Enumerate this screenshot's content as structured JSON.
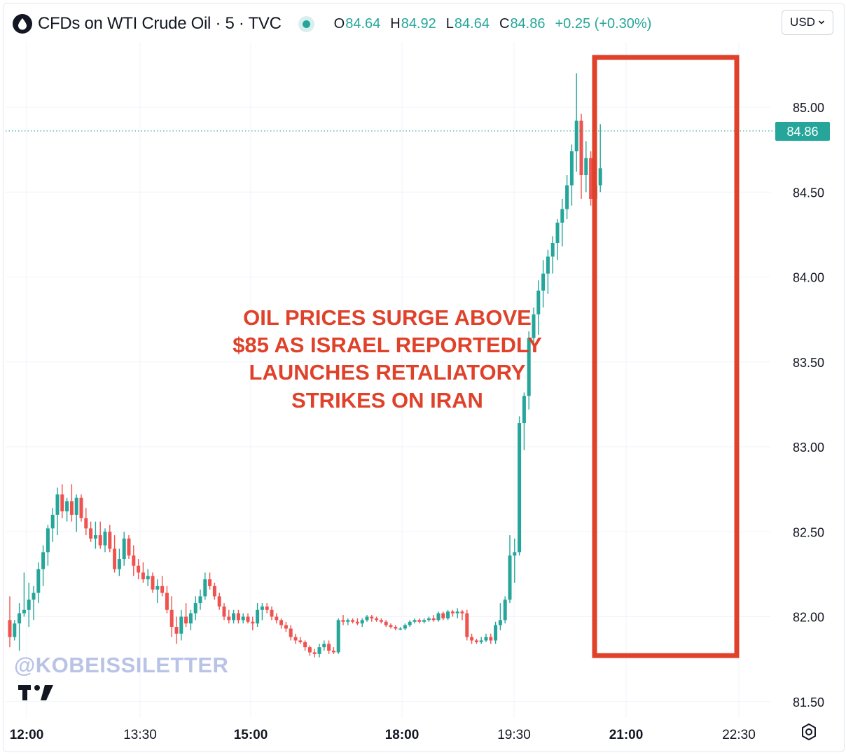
{
  "header": {
    "title": "CFDs on WTI Crude Oil · 5 · TVC",
    "ohlc": [
      {
        "key": "O",
        "value": "84.64"
      },
      {
        "key": "H",
        "value": "84.92"
      },
      {
        "key": "L",
        "value": "84.64"
      },
      {
        "key": "C",
        "value": "84.86"
      },
      {
        "key": "",
        "value": "+0.25 (+0.30%)"
      }
    ],
    "currency": "USD",
    "logo_icon": "oil-drop-icon",
    "status_icon": "market-open-dot-icon"
  },
  "watermark": "@KOBEISSILETTER",
  "annotation": {
    "lines": [
      "OIL PRICES SURGE ABOVE",
      "$85 AS ISRAEL REPORTEDLY",
      "LAUNCHES RETALIATORY",
      "STRIKES ON IRAN"
    ],
    "color": "#e0412a"
  },
  "colors": {
    "up": "#26a69a",
    "down": "#ef5350",
    "highlight": "#e0412a",
    "grid": "#f0f3fa",
    "axis_text": "#131722"
  },
  "chart_data": {
    "type": "candlestick",
    "title": "CFDs on WTI Crude Oil · 5 · TVC",
    "interval": "5",
    "y_axis": {
      "ticks": [
        "85.00",
        "84.50",
        "84.00",
        "83.50",
        "83.00",
        "82.50",
        "82.00",
        "81.50"
      ],
      "range": [
        81.43,
        85.66
      ],
      "position": "right",
      "last_price_label": "84.86",
      "last_price": 84.86
    },
    "x_axis": {
      "ticks": [
        {
          "label": "12:00",
          "bold": true
        },
        {
          "label": "13:30",
          "bold": false
        },
        {
          "label": "15:00",
          "bold": true
        },
        {
          "label": "18:00",
          "bold": true
        },
        {
          "label": "19:30",
          "bold": false
        },
        {
          "label": "21:00",
          "bold": true
        },
        {
          "label": "22:30",
          "bold": false
        }
      ]
    },
    "grid": true,
    "candles": [
      [
        81.98,
        82.12,
        81.82,
        81.88
      ],
      [
        81.88,
        81.98,
        81.86,
        81.96
      ],
      [
        81.96,
        82.08,
        81.8,
        82.02
      ],
      [
        82.02,
        82.26,
        82.0,
        82.04
      ],
      [
        82.04,
        82.2,
        81.94,
        82.1
      ],
      [
        82.1,
        82.18,
        81.98,
        82.14
      ],
      [
        82.14,
        82.32,
        82.08,
        82.28
      ],
      [
        82.28,
        82.42,
        82.18,
        82.38
      ],
      [
        82.38,
        82.54,
        82.3,
        82.52
      ],
      [
        82.52,
        82.64,
        82.44,
        82.6
      ],
      [
        82.6,
        82.76,
        82.48,
        82.72
      ],
      [
        82.72,
        82.78,
        82.58,
        82.62
      ],
      [
        82.62,
        82.7,
        82.56,
        82.68
      ],
      [
        82.68,
        82.78,
        82.56,
        82.6
      ],
      [
        82.6,
        82.72,
        82.5,
        82.7
      ],
      [
        82.7,
        82.72,
        82.56,
        82.58
      ],
      [
        82.58,
        82.64,
        82.48,
        82.52
      ],
      [
        82.52,
        82.56,
        82.44,
        82.46
      ],
      [
        82.46,
        82.56,
        82.4,
        82.48
      ],
      [
        82.48,
        82.56,
        82.4,
        82.42
      ],
      [
        82.42,
        82.52,
        82.38,
        82.5
      ],
      [
        82.5,
        82.54,
        82.38,
        82.4
      ],
      [
        82.4,
        82.48,
        82.26,
        82.28
      ],
      [
        82.28,
        82.4,
        82.24,
        82.34
      ],
      [
        82.34,
        82.5,
        82.3,
        82.46
      ],
      [
        82.46,
        82.48,
        82.34,
        82.36
      ],
      [
        82.36,
        82.42,
        82.24,
        82.3
      ],
      [
        82.3,
        82.34,
        82.22,
        82.26
      ],
      [
        82.26,
        82.32,
        82.2,
        82.22
      ],
      [
        82.22,
        82.28,
        82.18,
        82.24
      ],
      [
        82.24,
        82.26,
        82.14,
        82.16
      ],
      [
        82.16,
        82.22,
        82.08,
        82.18
      ],
      [
        82.18,
        82.24,
        82.12,
        82.14
      ],
      [
        82.14,
        82.18,
        82.02,
        82.04
      ],
      [
        82.04,
        82.12,
        81.88,
        81.94
      ],
      [
        81.94,
        82.0,
        81.84,
        81.9
      ],
      [
        81.9,
        82.04,
        81.86,
        82.0
      ],
      [
        82.0,
        82.08,
        81.94,
        81.96
      ],
      [
        81.96,
        82.04,
        81.92,
        82.02
      ],
      [
        82.02,
        82.12,
        81.98,
        82.08
      ],
      [
        82.08,
        82.16,
        82.04,
        82.12
      ],
      [
        82.12,
        82.26,
        82.1,
        82.22
      ],
      [
        82.22,
        82.26,
        82.16,
        82.18
      ],
      [
        82.18,
        82.2,
        82.1,
        82.12
      ],
      [
        82.12,
        82.14,
        82.04,
        82.06
      ],
      [
        82.06,
        82.08,
        81.98,
        82.0
      ],
      [
        82.0,
        82.04,
        81.96,
        81.98
      ],
      [
        81.98,
        82.04,
        81.96,
        82.02
      ],
      [
        82.02,
        82.04,
        81.96,
        81.98
      ],
      [
        81.98,
        82.02,
        81.96,
        82.0
      ],
      [
        82.0,
        82.02,
        81.96,
        81.97
      ],
      [
        81.97,
        82.0,
        81.92,
        81.96
      ],
      [
        81.96,
        82.08,
        81.94,
        82.04
      ],
      [
        82.04,
        82.08,
        81.98,
        82.06
      ],
      [
        82.06,
        82.08,
        82.02,
        82.04
      ],
      [
        82.04,
        82.06,
        81.98,
        82.0
      ],
      [
        82.0,
        82.02,
        81.96,
        81.98
      ],
      [
        81.98,
        81.99,
        81.93,
        81.95
      ],
      [
        81.95,
        81.97,
        81.91,
        81.93
      ],
      [
        81.93,
        81.95,
        81.86,
        81.88
      ],
      [
        81.88,
        81.9,
        81.84,
        81.86
      ],
      [
        81.86,
        81.88,
        81.84,
        81.85
      ],
      [
        81.85,
        81.86,
        81.8,
        81.82
      ],
      [
        81.82,
        81.83,
        81.77,
        81.79
      ],
      [
        81.79,
        81.81,
        81.76,
        81.78
      ],
      [
        81.78,
        81.84,
        81.76,
        81.82
      ],
      [
        81.82,
        81.86,
        81.8,
        81.84
      ],
      [
        81.84,
        81.86,
        81.78,
        81.8
      ],
      [
        81.8,
        81.82,
        81.78,
        81.79
      ],
      [
        81.79,
        81.99,
        81.78,
        81.98
      ],
      [
        81.98,
        82.01,
        81.95,
        81.97
      ],
      [
        81.97,
        81.99,
        81.95,
        81.98
      ],
      [
        81.98,
        81.99,
        81.96,
        81.97
      ],
      [
        81.97,
        81.99,
        81.95,
        81.96
      ],
      [
        81.96,
        81.99,
        81.94,
        81.98
      ],
      [
        81.98,
        82.01,
        81.97,
        82.0
      ],
      [
        82.0,
        82.01,
        81.97,
        81.99
      ],
      [
        81.99,
        82.0,
        81.97,
        81.98
      ],
      [
        81.98,
        81.99,
        81.96,
        81.97
      ],
      [
        81.97,
        81.98,
        81.94,
        81.95
      ],
      [
        81.95,
        81.96,
        81.93,
        81.94
      ],
      [
        81.94,
        81.95,
        81.92,
        81.93
      ],
      [
        81.93,
        81.94,
        81.92,
        81.93
      ],
      [
        81.93,
        81.96,
        81.92,
        81.95
      ],
      [
        81.95,
        81.98,
        81.94,
        81.97
      ],
      [
        81.97,
        81.99,
        81.96,
        81.98
      ],
      [
        81.98,
        81.99,
        81.96,
        81.97
      ],
      [
        81.97,
        81.99,
        81.96,
        81.98
      ],
      [
        81.98,
        82.0,
        81.97,
        81.99
      ],
      [
        81.99,
        82.01,
        81.97,
        81.98
      ],
      [
        81.98,
        82.03,
        81.97,
        82.02
      ],
      [
        82.02,
        82.03,
        81.98,
        81.99
      ],
      [
        81.99,
        82.04,
        81.98,
        82.03
      ],
      [
        82.03,
        82.04,
        82.0,
        82.02
      ],
      [
        82.02,
        82.05,
        81.99,
        82.03
      ],
      [
        82.03,
        82.04,
        81.98,
        82.02
      ],
      [
        82.02,
        82.04,
        81.86,
        81.88
      ],
      [
        81.88,
        81.9,
        81.84,
        81.86
      ],
      [
        81.86,
        81.87,
        81.84,
        81.85
      ],
      [
        81.85,
        81.88,
        81.84,
        81.86
      ],
      [
        81.86,
        81.9,
        81.85,
        81.88
      ],
      [
        81.88,
        81.9,
        81.84,
        81.86
      ],
      [
        81.86,
        81.97,
        81.84,
        81.95
      ],
      [
        81.95,
        82.08,
        81.92,
        81.98
      ],
      [
        81.98,
        82.12,
        81.96,
        82.1
      ],
      [
        82.1,
        82.48,
        82.08,
        82.36
      ],
      [
        82.36,
        82.46,
        82.2,
        82.38
      ],
      [
        82.38,
        83.18,
        82.36,
        83.14
      ],
      [
        83.14,
        83.32,
        82.98,
        83.3
      ],
      [
        83.3,
        83.68,
        83.22,
        83.64
      ],
      [
        83.64,
        83.82,
        83.56,
        83.78
      ],
      [
        83.78,
        83.98,
        83.66,
        83.92
      ],
      [
        83.92,
        84.1,
        83.82,
        84.02
      ],
      [
        84.02,
        84.16,
        83.9,
        84.12
      ],
      [
        84.12,
        84.24,
        84.02,
        84.2
      ],
      [
        84.2,
        84.34,
        84.1,
        84.32
      ],
      [
        84.32,
        84.46,
        84.18,
        84.4
      ],
      [
        84.4,
        84.6,
        84.34,
        84.54
      ],
      [
        84.54,
        84.78,
        84.42,
        84.74
      ],
      [
        84.74,
        85.2,
        84.62,
        84.92
      ],
      [
        84.92,
        84.96,
        84.46,
        84.6
      ],
      [
        84.6,
        84.8,
        84.5,
        84.7
      ],
      [
        84.7,
        84.74,
        84.42,
        84.46
      ],
      [
        84.46,
        84.62,
        84.38,
        84.54
      ],
      [
        84.54,
        84.9,
        84.5,
        84.64
      ]
    ]
  }
}
